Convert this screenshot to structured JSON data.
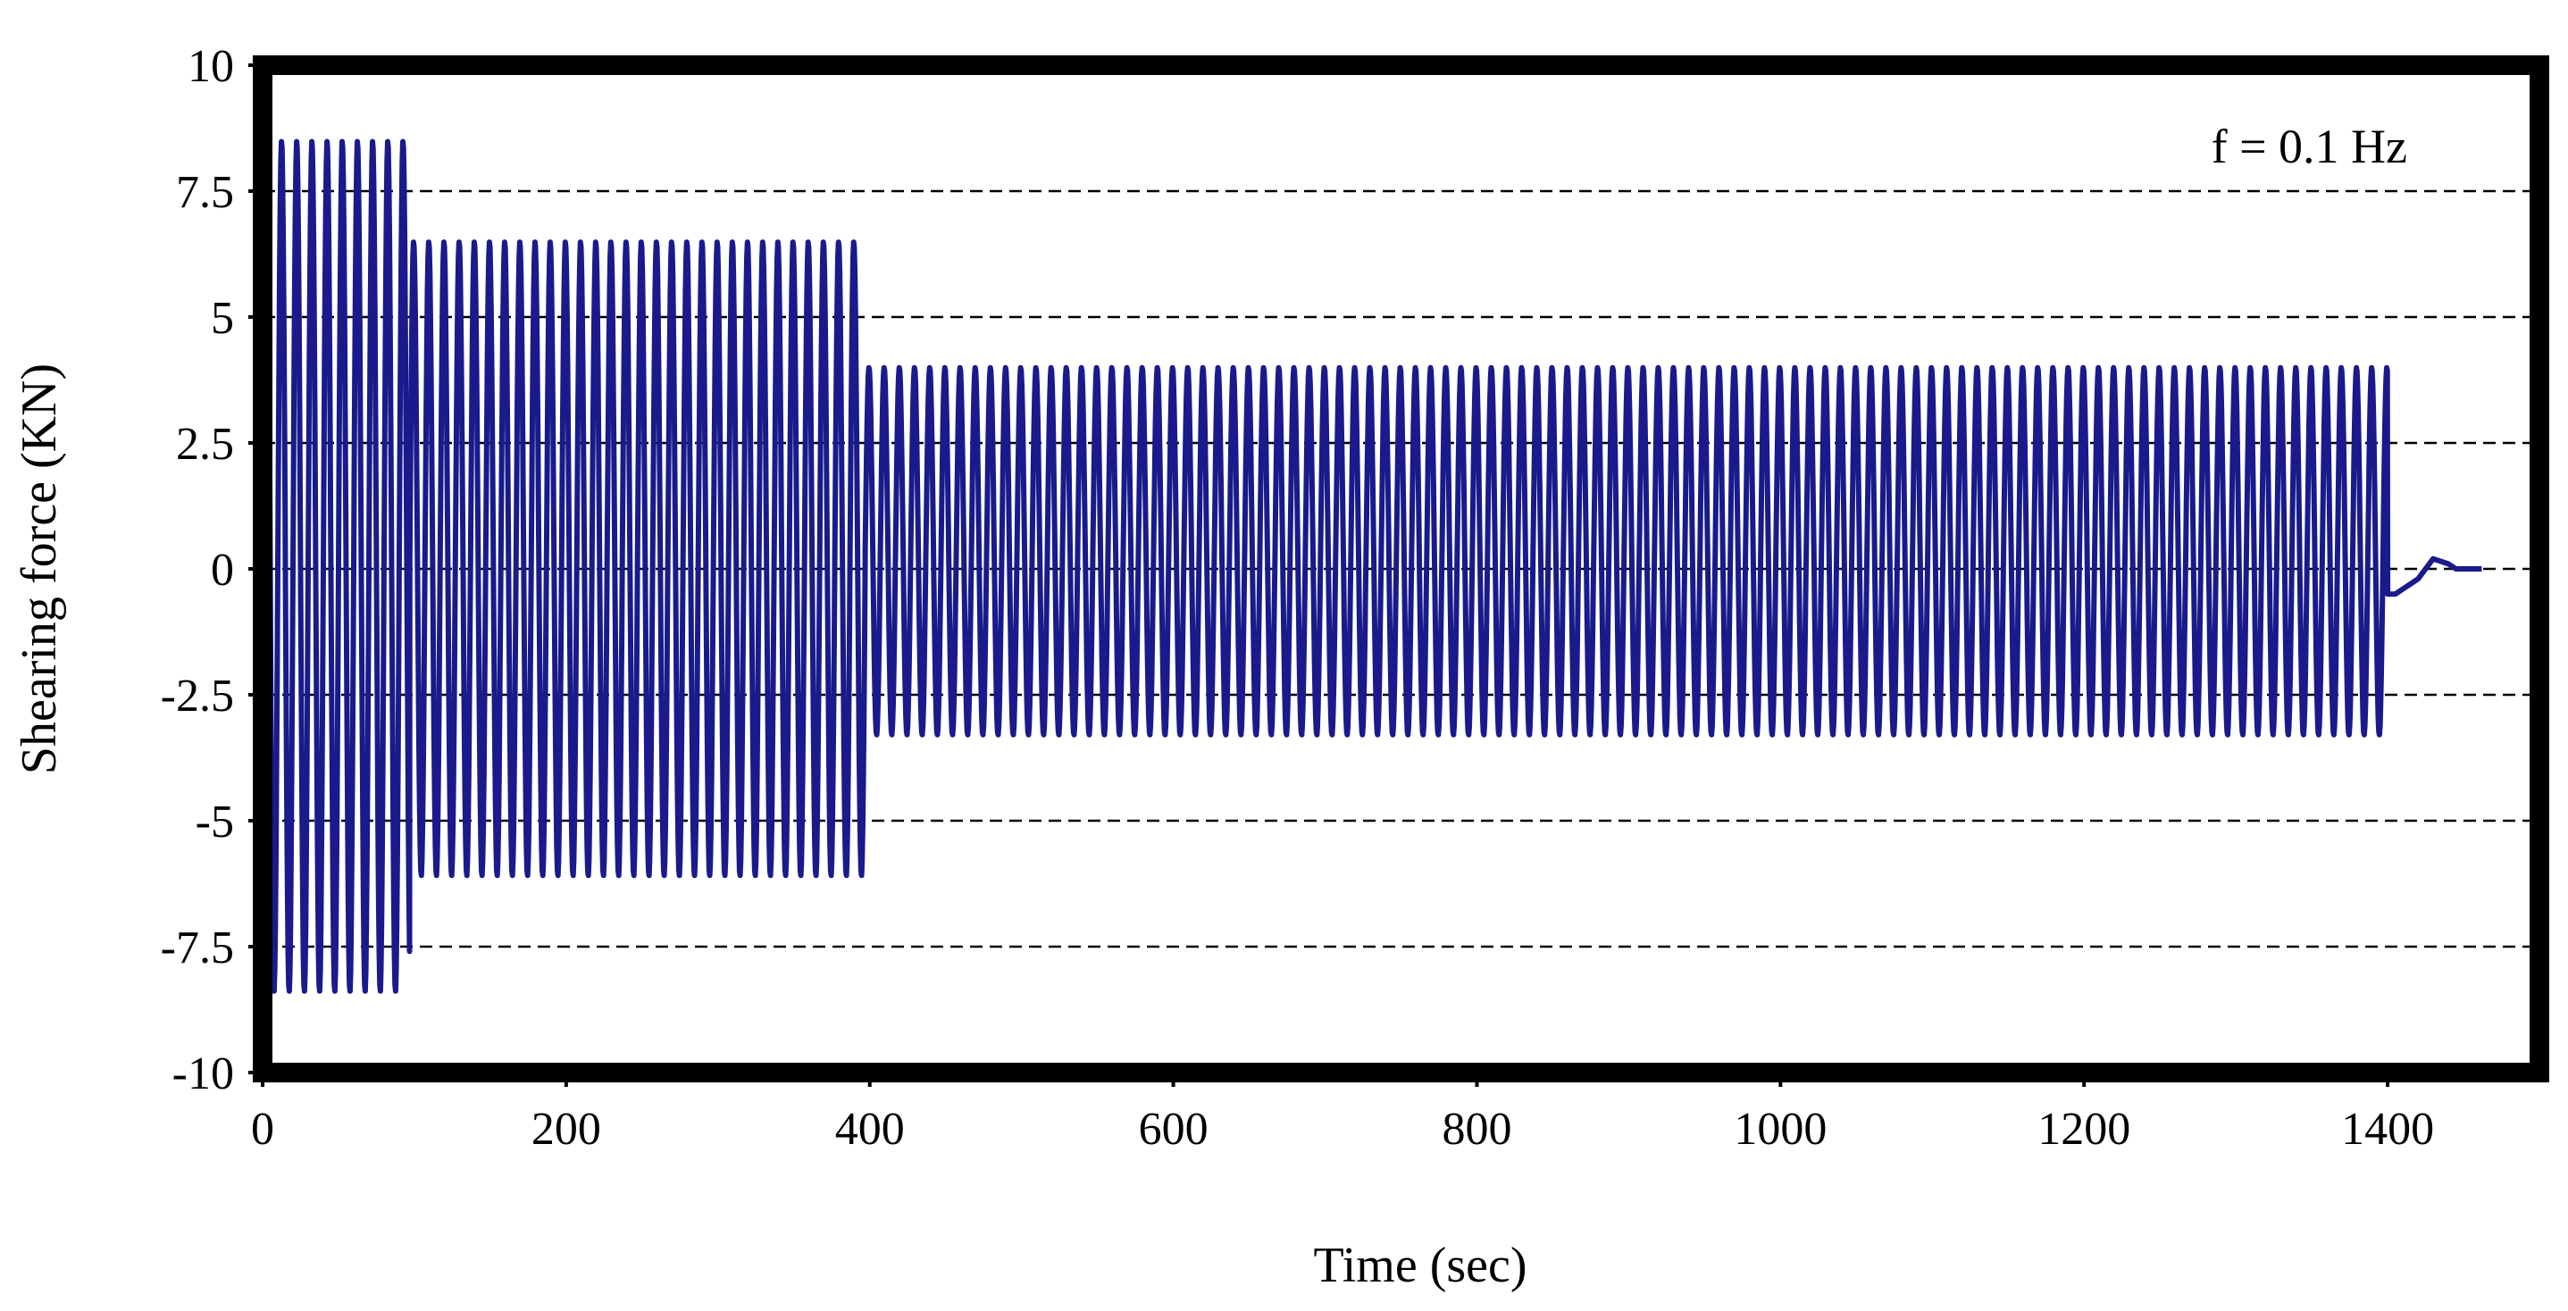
{
  "chart_data": {
    "type": "line",
    "title": "",
    "xlabel": "Time (sec)",
    "ylabel": "Shearing force (KN)",
    "xlim": [
      0,
      1500
    ],
    "ylim": [
      -10,
      10
    ],
    "x_ticks": [
      "0",
      "200",
      "400",
      "600",
      "800",
      "1000",
      "1200",
      "1400"
    ],
    "x_tick_values": [
      0,
      200,
      400,
      600,
      800,
      1000,
      1200,
      1400
    ],
    "y_ticks": [
      "10",
      "7.5",
      "5",
      "2.5",
      "0",
      "-2.5",
      "-5",
      "-7.5",
      "-10"
    ],
    "y_tick_values": [
      10,
      7.5,
      5,
      2.5,
      0,
      -2.5,
      -5,
      -7.5,
      -10
    ],
    "grid": "horizontal dashed",
    "legend": "none",
    "annotation": "f = 0.1 Hz",
    "line_color": "#1a1a8c",
    "frequency_hz": 0.1,
    "series": [
      {
        "segments": [
          {
            "t_start": 0,
            "t_end": 97,
            "min": -8.4,
            "max": 8.5
          },
          {
            "t_start": 97,
            "t_end": 397,
            "min": -6.1,
            "max": 6.5
          },
          {
            "t_start": 397,
            "t_end": 1400,
            "min": -3.3,
            "max": 4.0
          }
        ],
        "tail": [
          [
            1400,
            -0.5
          ],
          [
            1405,
            -0.5
          ],
          [
            1420,
            -0.2
          ],
          [
            1430,
            0.2
          ],
          [
            1440,
            0.1
          ],
          [
            1445,
            0.0
          ],
          [
            1462,
            0.0
          ]
        ]
      }
    ]
  }
}
